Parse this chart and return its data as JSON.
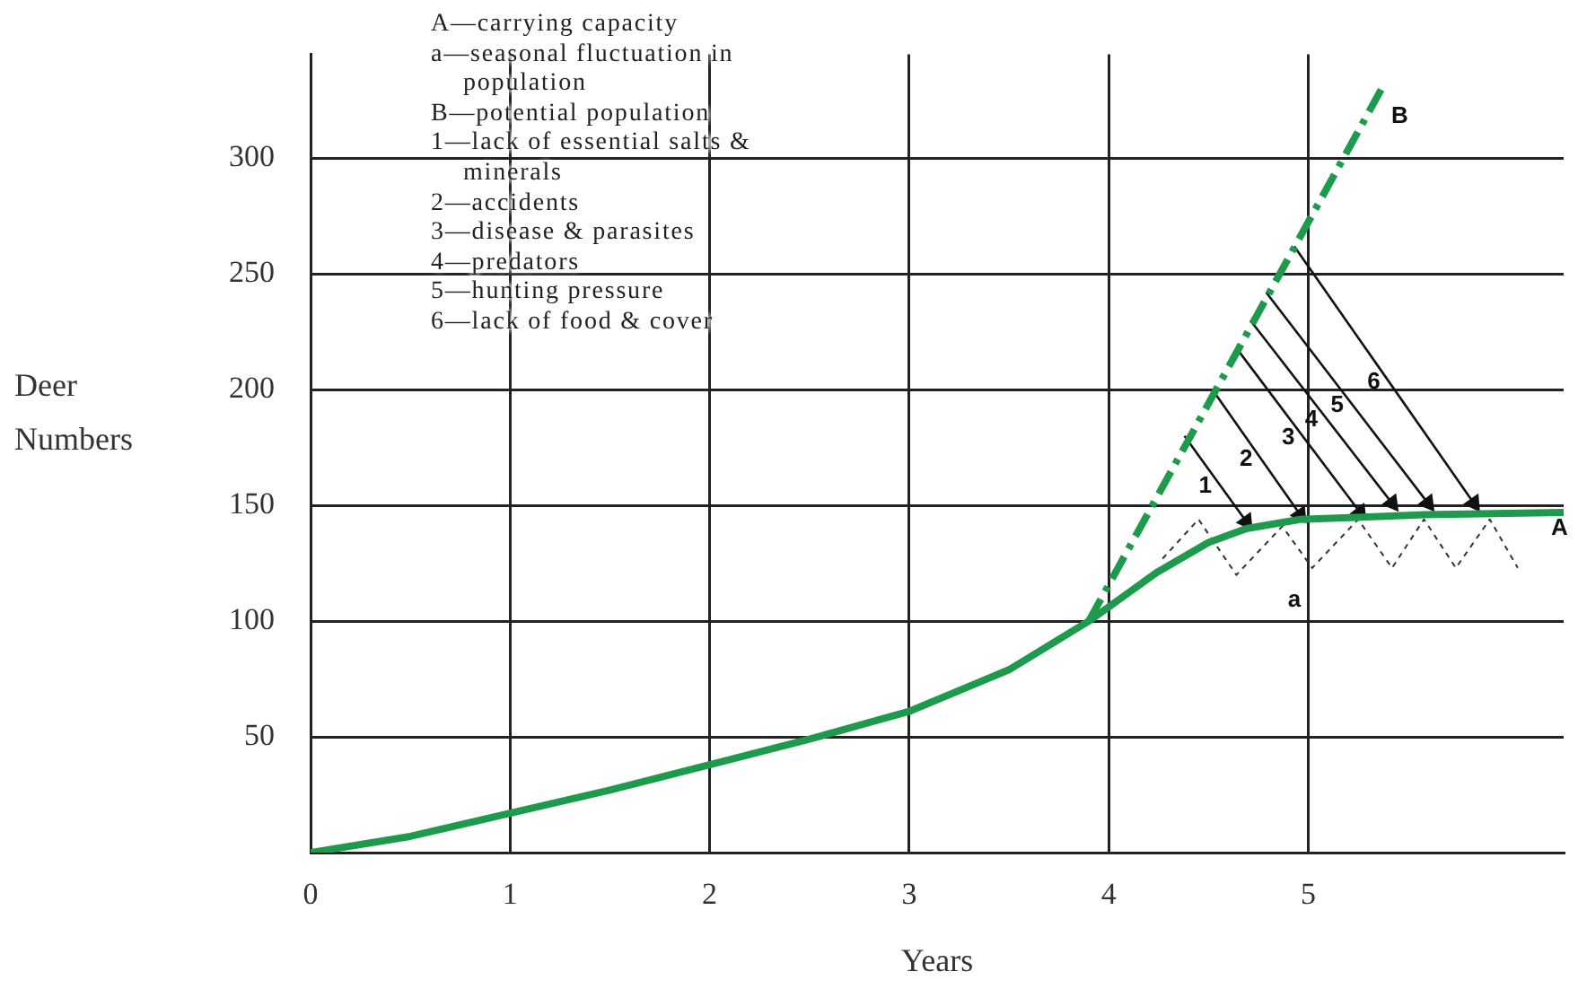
{
  "chart_data": {
    "type": "line",
    "xlabel": "Years",
    "ylabel": "Deer Numbers",
    "xlim": [
      0,
      6.28
    ],
    "ylim": [
      0,
      345
    ],
    "xticks": [
      0,
      1,
      2,
      3,
      4,
      5
    ],
    "yticks": [
      50,
      100,
      150,
      200,
      250,
      300
    ],
    "grid": true,
    "legend": false,
    "series": [
      {
        "name": "A",
        "color": "#1e9a4c",
        "line_style": "solid",
        "x": [
          0,
          0.5,
          1,
          1.5,
          2,
          2.5,
          3,
          3.5,
          3.9,
          4.24,
          4.5,
          4.69,
          4.96,
          5.3,
          5.58,
          6.28
        ],
        "values": [
          0,
          7,
          17,
          27,
          38,
          49,
          61,
          79,
          100,
          121,
          134,
          140,
          144,
          145,
          146,
          147
        ]
      },
      {
        "name": "B",
        "color": "#1e9a4c",
        "line_style": "dashed",
        "x": [
          3.9,
          5.38
        ],
        "values": [
          100,
          332
        ]
      },
      {
        "name": "a",
        "color": "#333333",
        "line_style": "dotted",
        "x": [
          4.27,
          4.45,
          4.64,
          4.87,
          5.02,
          5.25,
          5.42,
          5.58,
          5.74,
          5.91,
          6.05
        ],
        "values": [
          127,
          144,
          120,
          141,
          123,
          144,
          123,
          144,
          123,
          144,
          123
        ]
      },
      {
        "name": "1",
        "color": "#111111",
        "line_style": "solid",
        "marker": "triangle",
        "x": [
          4.38,
          4.69
        ],
        "values": [
          180,
          143
        ]
      },
      {
        "name": "2",
        "color": "#111111",
        "line_style": "solid",
        "marker": "triangle",
        "x": [
          4.52,
          4.96
        ],
        "values": [
          200,
          146
        ]
      },
      {
        "name": "3",
        "color": "#111111",
        "line_style": "solid",
        "marker": "triangle",
        "x": [
          4.64,
          5.26
        ],
        "values": [
          218,
          147
        ]
      },
      {
        "name": "4",
        "color": "#111111",
        "line_style": "solid",
        "marker": "triangle",
        "x": [
          4.71,
          5.42
        ],
        "values": [
          230,
          151
        ]
      },
      {
        "name": "5",
        "color": "#111111",
        "line_style": "solid",
        "marker": "triangle",
        "x": [
          4.79,
          5.6
        ],
        "values": [
          242,
          151
        ]
      },
      {
        "name": "6",
        "color": "#111111",
        "line_style": "solid",
        "marker": "triangle",
        "x": [
          4.93,
          5.83
        ],
        "values": [
          262,
          151
        ]
      }
    ],
    "annotations": [
      "A—carrying capacity",
      "a—seasonal fluctuation in population",
      "B—potential population",
      "1—lack of essential salts & minerals",
      "2—accidents",
      "3—disease & parasites",
      "4—predators",
      "5—hunting pressure",
      "6—lack of food & cover"
    ]
  }
}
